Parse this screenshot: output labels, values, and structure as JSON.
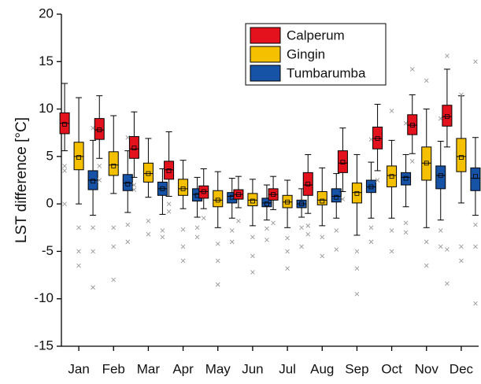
{
  "chart_data": {
    "type": "box",
    "ylabel": "LST difference [°C]",
    "categories": [
      "Jan",
      "Feb",
      "Mar",
      "Apr",
      "May",
      "Jun",
      "Jul",
      "Aug",
      "Sep",
      "Oct",
      "Nov",
      "Dec"
    ],
    "ylim": [
      -15,
      20
    ],
    "yticks": [
      -15,
      -10,
      -5,
      0,
      5,
      10,
      15,
      20
    ],
    "legend": "upper right",
    "series": [
      {
        "name": "Calperum",
        "color": "#e3121c",
        "low": [
          5.6,
          4.8,
          2.8,
          0.8,
          -0.5,
          -0.4,
          -0.6,
          -1.0,
          1.3,
          3.5,
          5.3,
          6.0
        ],
        "q1": [
          7.4,
          6.8,
          4.8,
          2.6,
          0.6,
          0.5,
          0.4,
          0.9,
          3.3,
          5.8,
          7.3,
          8.2
        ],
        "median": [
          8.5,
          7.8,
          5.8,
          3.6,
          1.3,
          1.0,
          1.0,
          2.0,
          4.3,
          6.9,
          8.3,
          9.2
        ],
        "q3": [
          9.6,
          9.0,
          7.1,
          4.5,
          1.9,
          1.5,
          1.6,
          3.3,
          5.6,
          8.1,
          9.4,
          10.4
        ],
        "high": [
          12.7,
          11.4,
          9.7,
          7.6,
          3.7,
          2.9,
          2.9,
          5.2,
          8.0,
          10.5,
          11.5,
          14.2
        ],
        "mean": [
          8.4,
          7.8,
          5.9,
          3.5,
          1.3,
          1.0,
          1.0,
          2.1,
          4.4,
          6.9,
          8.3,
          9.2
        ],
        "outliers": [
          [
            3.5,
            0.0,
            4.0
          ],
          [
            4.0,
            2.5
          ],
          [
            1.5,
            2.0
          ],
          [
            0.0,
            -0.8
          ],
          [
            -1.5
          ],
          [
            -1.8
          ],
          [
            -2.0
          ],
          [
            -2.3,
            -3.2
          ],
          [
            0.5
          ],
          [
            2.5
          ],
          [
            4.5,
            14.2
          ],
          [
            -4.8,
            -8.4,
            15.6
          ]
        ]
      },
      {
        "name": "Gingin",
        "color": "#f5c000",
        "low": [
          0.0,
          1.1,
          0.7,
          -0.5,
          -2.5,
          -2.3,
          -2.5,
          -2.3,
          -3.3,
          -1.5,
          -2.5,
          0.1
        ],
        "q1": [
          3.6,
          3.0,
          2.3,
          0.9,
          -0.3,
          -0.2,
          -0.4,
          -0.1,
          0.1,
          1.8,
          2.5,
          3.4
        ],
        "median": [
          5.0,
          4.1,
          3.2,
          1.6,
          0.4,
          0.4,
          0.2,
          0.4,
          1.2,
          3.0,
          4.3,
          5.0
        ],
        "q3": [
          6.5,
          5.5,
          4.3,
          2.6,
          1.4,
          1.1,
          0.9,
          1.3,
          2.2,
          4.0,
          6.0,
          6.9
        ],
        "high": [
          11.2,
          9.3,
          6.9,
          4.6,
          3.4,
          2.6,
          2.5,
          3.8,
          5.2,
          6.7,
          10.0,
          11.4
        ],
        "mean": [
          4.9,
          4.0,
          3.2,
          1.6,
          0.4,
          0.3,
          0.2,
          0.3,
          1.1,
          2.9,
          4.3,
          4.9
        ],
        "outliers": [
          [
            -2.5,
            -5.0,
            -6.5
          ],
          [
            -2.5,
            -4.5,
            -8.0
          ],
          [
            -1.8,
            -3.2
          ],
          [
            -2.7,
            -4.5,
            -6.0
          ],
          [
            -4.2,
            -6.0,
            -8.5
          ],
          [
            -3.5,
            -5.5,
            -7.2
          ],
          [
            -3.6,
            -5.0,
            -6.8
          ],
          [
            -3.5,
            -5.5
          ],
          [
            -5.0,
            -6.8,
            -9.5
          ],
          [
            -2.8,
            -5.0,
            9.8
          ],
          [
            -4.0,
            -6.5,
            13.0
          ],
          [
            -4.5,
            -6.0,
            11.5
          ]
        ]
      },
      {
        "name": "Tumbarumba",
        "color": "#1652a6",
        "low": [
          -1.2,
          -0.9,
          -1.1,
          -1.4,
          -1.5,
          -1.7,
          -1.4,
          -1.5,
          -1.5,
          -0.3,
          -1.7,
          -1.2
        ],
        "q1": [
          1.5,
          1.4,
          0.9,
          0.3,
          0.1,
          -0.3,
          -0.4,
          0.2,
          1.2,
          2.0,
          1.6,
          1.4
        ],
        "median": [
          2.5,
          2.2,
          1.6,
          1.0,
          0.8,
          0.1,
          0.0,
          0.8,
          1.8,
          2.8,
          3.0,
          2.7
        ],
        "q3": [
          3.5,
          3.1,
          2.3,
          1.6,
          1.2,
          0.6,
          0.4,
          1.6,
          2.5,
          3.3,
          4.0,
          3.8
        ],
        "high": [
          6.7,
          5.6,
          3.7,
          2.8,
          2.7,
          2.0,
          1.6,
          3.2,
          4.4,
          5.2,
          6.6,
          7.0
        ],
        "mean": [
          2.4,
          2.1,
          1.6,
          0.9,
          0.7,
          0.0,
          0.0,
          0.7,
          1.8,
          2.7,
          3.0,
          2.9
        ],
        "outliers": [
          [
            -2.5,
            -5.0,
            -8.8,
            8.0
          ],
          [
            -2.2,
            -4.0,
            7.0
          ],
          [
            -2.8,
            -3.5
          ],
          [
            -2.5,
            -3.5
          ],
          [
            -2.8,
            -4.0
          ],
          [
            -2.6,
            -3.8
          ],
          [
            -2.5,
            -4.5
          ],
          [
            -2.8,
            -4.8
          ],
          [
            -2.5,
            -4.0,
            6.8
          ],
          [
            -2.0,
            -3.0,
            8.5
          ],
          [
            -2.8,
            -4.5,
            9.0
          ],
          [
            -2.2,
            -4.5,
            -10.5,
            15.0
          ]
        ]
      }
    ]
  }
}
